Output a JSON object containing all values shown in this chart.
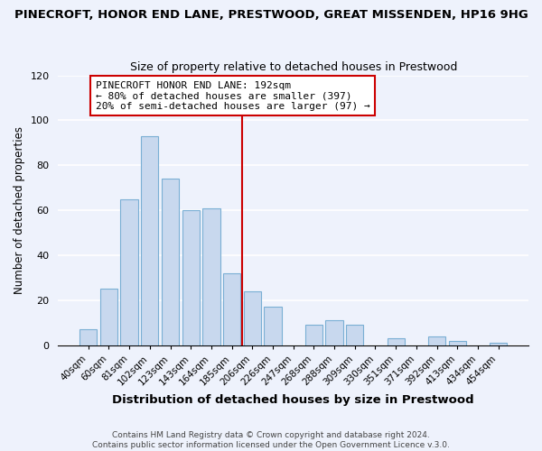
{
  "title": "PINECROFT, HONOR END LANE, PRESTWOOD, GREAT MISSENDEN, HP16 9HG",
  "subtitle": "Size of property relative to detached houses in Prestwood",
  "xlabel": "Distribution of detached houses by size in Prestwood",
  "ylabel": "Number of detached properties",
  "bar_labels": [
    "40sqm",
    "60sqm",
    "81sqm",
    "102sqm",
    "123sqm",
    "143sqm",
    "164sqm",
    "185sqm",
    "206sqm",
    "226sqm",
    "247sqm",
    "268sqm",
    "288sqm",
    "309sqm",
    "330sqm",
    "351sqm",
    "371sqm",
    "392sqm",
    "413sqm",
    "434sqm",
    "454sqm"
  ],
  "bar_heights": [
    7,
    25,
    65,
    93,
    74,
    60,
    61,
    32,
    24,
    17,
    0,
    9,
    11,
    9,
    0,
    3,
    0,
    4,
    2,
    0,
    1
  ],
  "bar_color": "#c8d8ee",
  "bar_edge_color": "#7aafd4",
  "vline_x": 7.5,
  "vline_color": "#cc0000",
  "annotation_title": "PINECROFT HONOR END LANE: 192sqm",
  "annotation_line1": "← 80% of detached houses are smaller (397)",
  "annotation_line2": "20% of semi-detached houses are larger (97) →",
  "annotation_box_color": "#ffffff",
  "annotation_border_color": "#cc0000",
  "ylim": [
    0,
    120
  ],
  "yticks": [
    0,
    20,
    40,
    60,
    80,
    100,
    120
  ],
  "footer1": "Contains HM Land Registry data © Crown copyright and database right 2024.",
  "footer2": "Contains public sector information licensed under the Open Government Licence v.3.0.",
  "bg_color": "#eef2fc",
  "plot_bg_color": "#eef2fc",
  "grid_color": "#ffffff"
}
